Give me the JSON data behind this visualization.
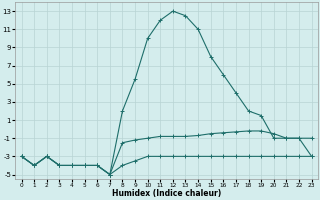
{
  "title": "",
  "xlabel": "Humidex (Indice chaleur)",
  "background_color": "#d4eded",
  "grid_color": "#b8d4d4",
  "line_color": "#1e6e6a",
  "xlim": [
    -0.5,
    23.5
  ],
  "ylim": [
    -5.5,
    14.0
  ],
  "xticks": [
    0,
    1,
    2,
    3,
    4,
    5,
    6,
    7,
    8,
    9,
    10,
    11,
    12,
    13,
    14,
    15,
    16,
    17,
    18,
    19,
    20,
    21,
    22,
    23
  ],
  "yticks": [
    -5,
    -3,
    -1,
    1,
    3,
    5,
    7,
    9,
    11,
    13
  ],
  "curve1_x": [
    0,
    1,
    2,
    3,
    4,
    5,
    6,
    7,
    8,
    9,
    10,
    11,
    12,
    13,
    14,
    15,
    16,
    17,
    18,
    19,
    20,
    21,
    22,
    23
  ],
  "curve1_y": [
    -3,
    -4,
    -3,
    -4,
    -4,
    -4,
    -4,
    -5,
    -4,
    -3.5,
    -3,
    -3,
    -3,
    -3,
    -3,
    -3,
    -3,
    -3,
    -3,
    -3,
    -3,
    -3,
    -3,
    -3
  ],
  "curve2_x": [
    0,
    1,
    2,
    3,
    4,
    5,
    6,
    7,
    8,
    9,
    10,
    11,
    12,
    13,
    14,
    15,
    16,
    17,
    18,
    19,
    20,
    21,
    22,
    23
  ],
  "curve2_y": [
    -3,
    -4,
    -3,
    -4,
    -4,
    -4,
    -4,
    -5,
    -1.5,
    -1.2,
    -1,
    -0.8,
    -0.8,
    -0.8,
    -0.7,
    -0.5,
    -0.4,
    -0.3,
    -0.2,
    -0.2,
    -0.5,
    -1,
    -1,
    -1
  ],
  "curve3_x": [
    0,
    1,
    2,
    3,
    4,
    5,
    6,
    7,
    8,
    9,
    10,
    11,
    12,
    13,
    14,
    15,
    16,
    17,
    18,
    19,
    20,
    21,
    22,
    23
  ],
  "curve3_y": [
    -3,
    -4,
    -3,
    -4,
    -4,
    -4,
    -4,
    -5,
    2,
    5.5,
    10,
    12,
    13,
    12.5,
    11,
    8,
    6,
    4,
    2,
    1.5,
    -1,
    -1,
    -1,
    -3
  ]
}
